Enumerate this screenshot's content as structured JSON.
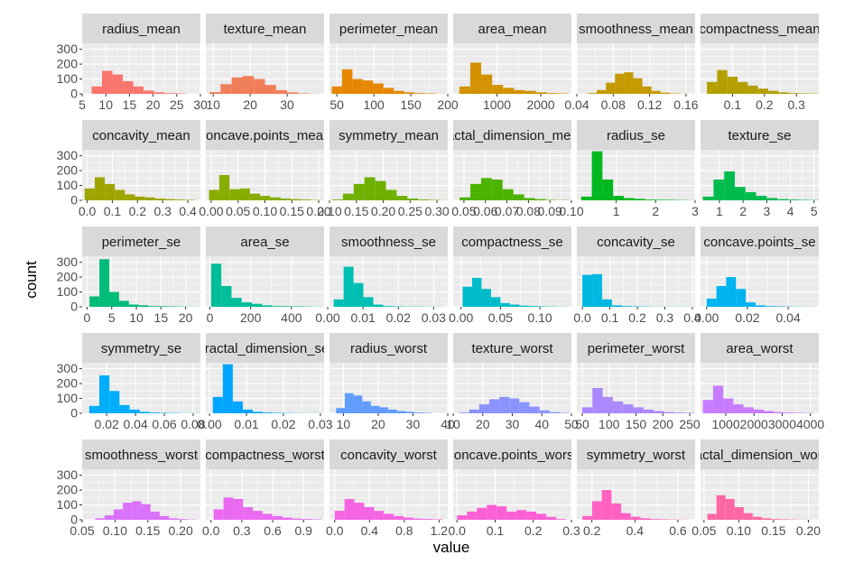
{
  "chart_data": {
    "type": "histogram_faceted",
    "xlabel": "value",
    "ylabel": "count",
    "y_ticks": [
      0,
      100,
      200,
      300
    ],
    "ylim": [
      0,
      340
    ],
    "grid": true,
    "facets": [
      {
        "title": "radius_mean",
        "color": "#F8766D",
        "xlim": [
          5,
          30
        ],
        "ticks": [
          "5",
          "10",
          "15",
          "20",
          "25",
          "30"
        ],
        "bins": {
          "start": 7,
          "width": 2.2,
          "counts": [
            50,
            155,
            130,
            85,
            50,
            22,
            10,
            5,
            3
          ]
        }
      },
      {
        "title": "texture_mean",
        "color": "#F07E58",
        "xlim": [
          8,
          40
        ],
        "ticks": [
          "10",
          "20",
          "30"
        ],
        "bins": {
          "start": 9,
          "width": 3,
          "counts": [
            12,
            65,
            110,
            120,
            100,
            60,
            25,
            10,
            3,
            1
          ]
        }
      },
      {
        "title": "perimeter_mean",
        "color": "#E58700",
        "xlim": [
          40,
          200
        ],
        "ticks": [
          "50",
          "100",
          "150",
          "200"
        ],
        "bins": {
          "start": 43,
          "width": 14,
          "counts": [
            50,
            165,
            100,
            90,
            70,
            40,
            20,
            10,
            5,
            3,
            1
          ]
        }
      },
      {
        "title": "area_mean",
        "color": "#D39200",
        "xlim": [
          0,
          2700
        ],
        "ticks": [
          "1000",
          "2000"
        ],
        "bins": {
          "start": 140,
          "width": 250,
          "counts": [
            50,
            210,
            130,
            60,
            40,
            25,
            20,
            10,
            5,
            3
          ]
        }
      },
      {
        "title": "smoothness_mean",
        "color": "#C49A00",
        "xlim": [
          0.04,
          0.17
        ],
        "ticks": [
          "0.04",
          "0.08",
          "0.12",
          "0.16"
        ],
        "bins": {
          "start": 0.052,
          "width": 0.01,
          "counts": [
            5,
            25,
            75,
            135,
            145,
            105,
            50,
            20,
            8,
            3,
            1
          ]
        }
      },
      {
        "title": "compactness_mean",
        "color": "#B3A000",
        "xlim": [
          0,
          0.37
        ],
        "ticks": [
          "0.1",
          "0.2",
          "0.3"
        ],
        "bins": {
          "start": 0.02,
          "width": 0.032,
          "counts": [
            80,
            160,
            115,
            80,
            55,
            35,
            20,
            10,
            5,
            3,
            2
          ]
        }
      },
      {
        "title": "concavity_mean",
        "color": "#9FA500",
        "xlim": [
          -0.02,
          0.45
        ],
        "ticks": [
          "0.0",
          "0.1",
          "0.2",
          "0.3",
          "0.4"
        ],
        "bins": {
          "start": -0.01,
          "width": 0.04,
          "counts": [
            80,
            155,
            110,
            70,
            40,
            25,
            20,
            12,
            8,
            5,
            3
          ]
        }
      },
      {
        "title": "concave.points_mean",
        "color": "#89AC00",
        "xlim": [
          -0.01,
          0.21
        ],
        "ticks": [
          "0.00",
          "0.05",
          "0.10",
          "0.15",
          "0.20"
        ],
        "bins": {
          "start": -0.004,
          "width": 0.019,
          "counts": [
            70,
            170,
            75,
            80,
            45,
            30,
            20,
            12,
            8,
            5,
            2
          ]
        }
      },
      {
        "title": "symmetry_mean",
        "color": "#6FB000",
        "xlim": [
          0.1,
          0.32
        ],
        "ticks": [
          "0.10",
          "0.15",
          "0.20",
          "0.25",
          "0.30"
        ],
        "bins": {
          "start": 0.105,
          "width": 0.02,
          "counts": [
            5,
            45,
            110,
            155,
            130,
            70,
            30,
            12,
            5,
            3,
            1
          ]
        }
      },
      {
        "title": "fractal_dimension_mean",
        "color": "#4EB300",
        "xlim": [
          0.045,
          0.1
        ],
        "ticks": [
          "0.05",
          "0.06",
          "0.07",
          "0.08",
          "0.09",
          "0.10"
        ],
        "bins": {
          "start": 0.048,
          "width": 0.005,
          "counts": [
            20,
            110,
            150,
            140,
            75,
            40,
            15,
            8,
            3,
            2,
            1
          ]
        }
      },
      {
        "title": "radius_se",
        "color": "#00B81F",
        "xlim": [
          0,
          3
        ],
        "ticks": [
          "1",
          "2",
          "3"
        ],
        "bins": {
          "start": 0.11,
          "width": 0.27,
          "counts": [
            25,
            330,
            140,
            30,
            15,
            10,
            5,
            4,
            3,
            2,
            1
          ]
        }
      },
      {
        "title": "texture_se",
        "color": "#00BB4E",
        "xlim": [
          0.2,
          5.2
        ],
        "ticks": [
          "1",
          "2",
          "3",
          "4",
          "5"
        ],
        "bins": {
          "start": 0.3,
          "width": 0.45,
          "counts": [
            25,
            140,
            195,
            90,
            55,
            30,
            15,
            8,
            5,
            3,
            2
          ]
        }
      },
      {
        "title": "perimeter_se",
        "color": "#00BC79",
        "xlim": [
          -1,
          23
        ],
        "ticks": [
          "0",
          "5",
          "10",
          "15",
          "20"
        ],
        "bins": {
          "start": 0.5,
          "width": 2,
          "counts": [
            70,
            320,
            100,
            40,
            15,
            10,
            5,
            4,
            3,
            2,
            1
          ]
        }
      },
      {
        "title": "area_se",
        "color": "#00BE98",
        "xlim": [
          -20,
          560
        ],
        "ticks": [
          "0",
          "200",
          "400"
        ],
        "bins": {
          "start": 6,
          "width": 50,
          "counts": [
            290,
            140,
            60,
            30,
            20,
            10,
            5,
            4,
            3,
            2,
            1
          ]
        }
      },
      {
        "title": "smoothness_se",
        "color": "#00BFB3",
        "xlim": [
          0.0005,
          0.034
        ],
        "ticks": [
          "0.00",
          "0.01",
          "0.02",
          "0.03"
        ],
        "bins": {
          "start": 0.0017,
          "width": 0.0028,
          "counts": [
            50,
            270,
            160,
            65,
            15,
            5,
            3,
            2,
            2,
            1,
            1
          ]
        }
      },
      {
        "title": "compactness_se",
        "color": "#00BCCA",
        "xlim": [
          -0.01,
          0.14
        ],
        "ticks": [
          "0.00",
          "0.05",
          "0.10"
        ],
        "bins": {
          "start": 0.002,
          "width": 0.012,
          "counts": [
            135,
            195,
            120,
            65,
            25,
            15,
            8,
            5,
            3,
            2,
            1
          ]
        }
      },
      {
        "title": "concavity_se",
        "color": "#00B8E0",
        "xlim": [
          -0.02,
          0.41
        ],
        "ticks": [
          "0.0",
          "0.1",
          "0.2",
          "0.3",
          "0.4"
        ],
        "bins": {
          "start": 0,
          "width": 0.036,
          "counts": [
            215,
            220,
            50,
            10,
            5,
            3,
            2,
            1,
            1,
            1,
            1
          ]
        }
      },
      {
        "title": "concave.points_se",
        "color": "#00B3F1",
        "xlim": [
          -0.003,
          0.055
        ],
        "ticks": [
          "0.00",
          "0.02",
          "0.04"
        ],
        "bins": {
          "start": 0,
          "width": 0.0048,
          "counts": [
            55,
            140,
            200,
            120,
            30,
            10,
            5,
            3,
            2,
            1,
            1
          ]
        }
      },
      {
        "title": "symmetry_se",
        "color": "#00ADFA",
        "xlim": [
          0.003,
          0.085
        ],
        "ticks": [
          "0.02",
          "0.04",
          "0.06",
          "0.08"
        ],
        "bins": {
          "start": 0.0079,
          "width": 0.007,
          "counts": [
            50,
            255,
            150,
            55,
            25,
            10,
            5,
            3,
            2,
            1,
            1
          ]
        }
      },
      {
        "title": "fractal_dimension_se",
        "color": "#00A5FF",
        "xlim": [
          -0.001,
          0.031
        ],
        "ticks": [
          "0.00",
          "0.01",
          "0.02",
          "0.03"
        ],
        "bins": {
          "start": 0.0009,
          "width": 0.0027,
          "counts": [
            110,
            330,
            80,
            25,
            10,
            5,
            3,
            2,
            1,
            1,
            1
          ]
        }
      },
      {
        "title": "radius_worst",
        "color": "#619CFF",
        "xlim": [
          6,
          40
        ],
        "ticks": [
          "10",
          "20",
          "30",
          "40"
        ],
        "bins": {
          "start": 7.9,
          "width": 2.5,
          "counts": [
            35,
            135,
            120,
            80,
            50,
            40,
            25,
            15,
            10,
            5,
            3
          ]
        }
      },
      {
        "title": "texture_worst",
        "color": "#8B93FF",
        "xlim": [
          10,
          50
        ],
        "ticks": [
          "10",
          "20",
          "30",
          "40",
          "50"
        ],
        "bins": {
          "start": 12,
          "width": 3.4,
          "counts": [
            5,
            25,
            60,
            95,
            110,
            100,
            75,
            45,
            20,
            8,
            3
          ]
        }
      },
      {
        "title": "perimeter_worst",
        "color": "#AC88FF",
        "xlim": [
          40,
          260
        ],
        "ticks": [
          "50",
          "100",
          "150",
          "200",
          "250"
        ],
        "bins": {
          "start": 50,
          "width": 19,
          "counts": [
            40,
            170,
            110,
            80,
            60,
            40,
            25,
            15,
            8,
            5,
            3
          ]
        }
      },
      {
        "title": "area_worst",
        "color": "#C77CFF",
        "xlim": [
          100,
          4300
        ],
        "ticks": [
          "1000",
          "2000",
          "3000",
          "4000"
        ],
        "bins": {
          "start": 185,
          "width": 360,
          "counts": [
            90,
            185,
            100,
            60,
            40,
            25,
            15,
            8,
            5,
            3,
            2
          ]
        }
      },
      {
        "title": "smoothness_worst",
        "color": "#DB72FB",
        "xlim": [
          0.05,
          0.23
        ],
        "ticks": [
          "0.05",
          "0.10",
          "0.15",
          "0.20"
        ],
        "bins": {
          "start": 0.07,
          "width": 0.014,
          "counts": [
            10,
            30,
            70,
            115,
            125,
            105,
            55,
            25,
            10,
            5,
            2
          ]
        }
      },
      {
        "title": "compactness_worst",
        "color": "#E96AF0",
        "xlim": [
          -0.05,
          1.1
        ],
        "ticks": [
          "0.0",
          "0.3",
          "0.6",
          "0.9"
        ],
        "bins": {
          "start": 0.027,
          "width": 0.095,
          "counts": [
            70,
            150,
            140,
            85,
            60,
            40,
            25,
            15,
            8,
            5,
            3
          ]
        }
      },
      {
        "title": "concavity_worst",
        "color": "#F564E3",
        "xlim": [
          -0.06,
          1.3
        ],
        "ticks": [
          "0.0",
          "0.4",
          "0.8",
          "1.2"
        ],
        "bins": {
          "start": 0,
          "width": 0.113,
          "counts": [
            60,
            140,
            115,
            85,
            60,
            40,
            25,
            15,
            8,
            5,
            3
          ]
        }
      },
      {
        "title": "concave.points_worst",
        "color": "#FC60D4",
        "xlim": [
          -0.01,
          0.3
        ],
        "ticks": [
          "0.0",
          "0.1",
          "0.2",
          "0.3"
        ],
        "bins": {
          "start": 0,
          "width": 0.026,
          "counts": [
            30,
            55,
            80,
            100,
            90,
            55,
            65,
            55,
            40,
            20,
            5
          ]
        }
      },
      {
        "title": "symmetry_worst",
        "color": "#FF61C3",
        "xlim": [
          0.13,
          0.68
        ],
        "ticks": [
          "0.2",
          "0.4",
          "0.6"
        ],
        "bins": {
          "start": 0.156,
          "width": 0.045,
          "counts": [
            25,
            125,
            200,
            110,
            45,
            20,
            10,
            5,
            3,
            2,
            1
          ]
        }
      },
      {
        "title": "fractal_dimension_worst",
        "color": "#FF67A4",
        "xlim": [
          0.045,
          0.215
        ],
        "ticks": [
          "0.05",
          "0.10",
          "0.15",
          "0.20"
        ],
        "bins": {
          "start": 0.055,
          "width": 0.013,
          "counts": [
            40,
            165,
            140,
            85,
            45,
            20,
            10,
            5,
            3,
            2,
            1
          ]
        }
      }
    ]
  }
}
